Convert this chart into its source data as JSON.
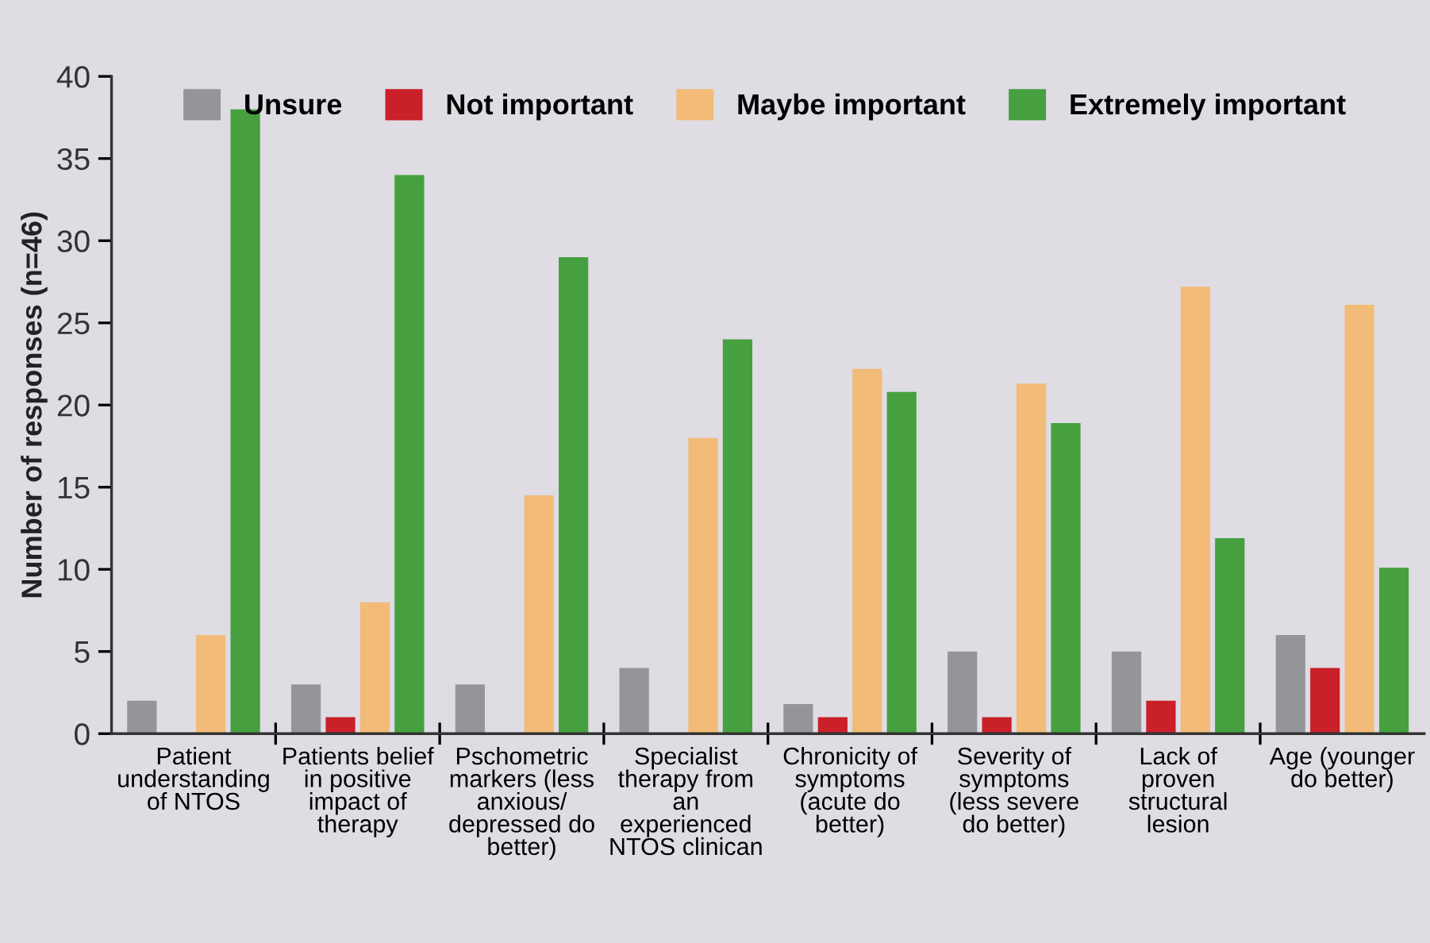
{
  "chart_data": {
    "type": "bar",
    "ylabel": "Number of responses (n=46)",
    "categories": [
      "Patient\nunderstanding\nof NTOS",
      "Patients belief\nin positive\nimpact of\ntherapy",
      "Pschometric\nmarkers (less\nanxious/\ndepressed do\nbetter)",
      "Specialist\ntherapy from\nan\nexperienced\nNTOS clinican",
      "Chronicity of\nsymptoms\n(acute do\nbetter)",
      "Severity of\nsymptoms\n(less severe\ndo better)",
      "Lack of\nproven\nstructural\nlesion",
      "Age (younger\ndo better)"
    ],
    "series": [
      {
        "name": "Unsure",
        "color": "#949599",
        "values": [
          2,
          3,
          3,
          4,
          1.8,
          5,
          5,
          6
        ]
      },
      {
        "name": "Not important",
        "color": "#c9202a",
        "values": [
          null,
          1,
          null,
          null,
          1,
          1,
          2,
          4
        ]
      },
      {
        "name": "Maybe important",
        "color": "#f2bb78",
        "values": [
          6,
          8,
          14.5,
          18,
          22.2,
          21.3,
          27.2,
          26.1
        ]
      },
      {
        "name": "Extremely important",
        "color": "#46a040",
        "values": [
          38,
          34,
          29,
          24,
          20.8,
          18.9,
          11.9,
          10.1
        ]
      }
    ],
    "ylim": [
      0,
      40
    ],
    "yticks": [
      0,
      5,
      10,
      15,
      20,
      25,
      30,
      35,
      40
    ],
    "grid": false,
    "legend": "top right"
  }
}
